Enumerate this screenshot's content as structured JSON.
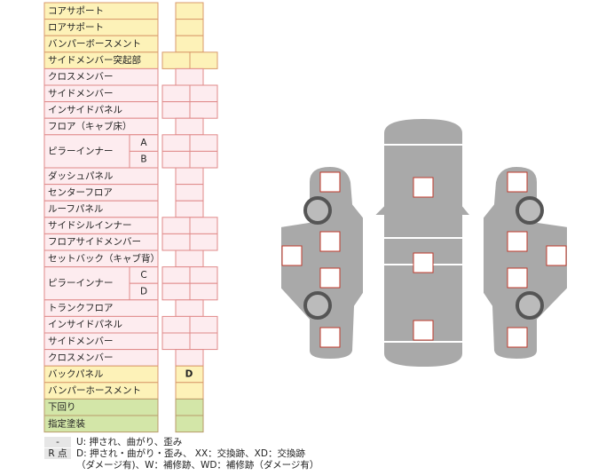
{
  "table": {
    "rows": [
      {
        "label": "コアサポート"
      },
      {
        "label": "ロアサポート"
      },
      {
        "label": "バンパーボースメント"
      },
      {
        "label": "サイドメンバー突起部"
      },
      {
        "label": "クロスメンバー"
      },
      {
        "label": "サイドメンバー"
      },
      {
        "label": "インサイドパネル"
      },
      {
        "label": "フロア（キャブ床）"
      },
      {
        "label": "ピラーインナー",
        "parts": [
          "A",
          "B"
        ]
      },
      {
        "label": "ダッシュパネル"
      },
      {
        "label": "センターフロア"
      },
      {
        "label": "ルーフパネル"
      },
      {
        "label": "サイドシルインナー"
      },
      {
        "label": "フロアサイドメンバー"
      },
      {
        "label": "セットバック（キャブ背）"
      },
      {
        "label": "ピラーインナー",
        "parts": [
          "C",
          "D"
        ]
      },
      {
        "label": "トランクフロア"
      },
      {
        "label": "インサイドパネル"
      },
      {
        "label": "サイドメンバー"
      },
      {
        "label": "クロスメンバー"
      },
      {
        "label": "バックパネル",
        "mark": "D"
      },
      {
        "label": "バンパーホースメント"
      },
      {
        "label": "下回り"
      },
      {
        "label": "指定塗装"
      }
    ]
  },
  "legend": [
    {
      "key": "-",
      "lines": [
        "U: 押され、曲がり、歪み"
      ]
    },
    {
      "key": "R 点",
      "lines": [
        "D: 押され・曲がり・歪み、 XX：交換跡、XD：交換跡",
        "（ダメージ有)、W：補修跡、WD：補修跡（ダメージ有）"
      ]
    }
  ]
}
